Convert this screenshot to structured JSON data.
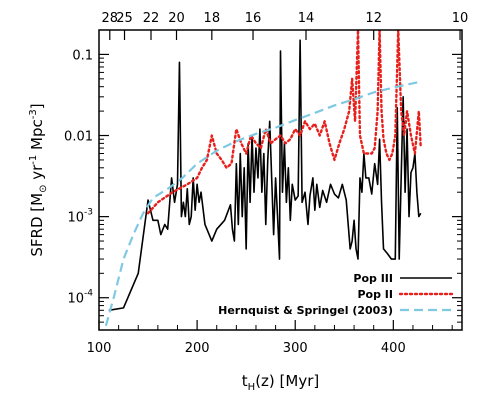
{
  "chart_data": {
    "type": "line",
    "x_label": {
      "main": "t",
      "sub": "H",
      "rest": "(z)  [Myr]"
    },
    "y_label": {
      "prefix": "SFRD  [M",
      "sun_sub": "⊙",
      "mid": " yr",
      "exp1": "-1",
      "mid2": " Mpc",
      "exp2": "-3",
      "suffix": "]"
    },
    "xlim": [
      100,
      470
    ],
    "ylim": [
      4e-05,
      0.2
    ],
    "y_scale": "log",
    "x_ticks": [
      100,
      200,
      300,
      400
    ],
    "x_tick_labels": [
      "100",
      "200",
      "300",
      "400"
    ],
    "y_ticks": [
      0.0001,
      0.001,
      0.01,
      0.1
    ],
    "y_tick_labels": [
      {
        "kind": "pow",
        "base": "10",
        "exp": "-4"
      },
      {
        "kind": "pow",
        "base": "10",
        "exp": "-3"
      },
      {
        "kind": "plain",
        "text": "0.01"
      },
      {
        "kind": "plain",
        "text": "0.1"
      }
    ],
    "top_ticks": [
      {
        "x": 111,
        "label": "28"
      },
      {
        "x": 126,
        "label": "25"
      },
      {
        "x": 153,
        "label": "22"
      },
      {
        "x": 179,
        "label": "20"
      },
      {
        "x": 215,
        "label": "18"
      },
      {
        "x": 257,
        "label": "16"
      },
      {
        "x": 311,
        "label": "14"
      },
      {
        "x": 380,
        "label": "12"
      },
      {
        "x": 468,
        "label": "10"
      }
    ],
    "legend_position": "bottom-right",
    "series": [
      {
        "name": "Pop III",
        "color": "#000000",
        "dash": "solid",
        "points": [
          [
            110,
            7e-05
          ],
          [
            125,
            7.5e-05
          ],
          [
            140,
            0.0002
          ],
          [
            150,
            0.0016
          ],
          [
            155,
            0.0009
          ],
          [
            160,
            0.0009
          ],
          [
            163,
            0.0006
          ],
          [
            167,
            0.0008
          ],
          [
            170,
            0.0007
          ],
          [
            174,
            0.003
          ],
          [
            177,
            0.0015
          ],
          [
            180,
            0.0025
          ],
          [
            182,
            0.08
          ],
          [
            184,
            0.001
          ],
          [
            186,
            0.0015
          ],
          [
            188,
            0.001
          ],
          [
            190,
            0.0022
          ],
          [
            192,
            0.0008
          ],
          [
            194,
            0.001
          ],
          [
            196,
            0.003
          ],
          [
            198,
            0.0012
          ],
          [
            200,
            0.0025
          ],
          [
            202,
            0.0015
          ],
          [
            204,
            0.002
          ],
          [
            208,
            0.0008
          ],
          [
            215,
            0.0005
          ],
          [
            220,
            0.0007
          ],
          [
            228,
            0.0009
          ],
          [
            234,
            0.0014
          ],
          [
            236,
            0.0007
          ],
          [
            238,
            0.0005
          ],
          [
            240,
            0.0045
          ],
          [
            242,
            0.0008
          ],
          [
            244,
            0.006
          ],
          [
            246,
            0.001
          ],
          [
            248,
            0.004
          ],
          [
            250,
            0.0004
          ],
          [
            252,
            0.008
          ],
          [
            254,
            0.0015
          ],
          [
            256,
            0.01
          ],
          [
            258,
            0.002
          ],
          [
            260,
            0.007
          ],
          [
            262,
            0.003
          ],
          [
            264,
            0.012
          ],
          [
            266,
            0.002
          ],
          [
            268,
            0.006
          ],
          [
            270,
            0.0008
          ],
          [
            272,
            0.005
          ],
          [
            274,
            0.015
          ],
          [
            276,
            0.003
          ],
          [
            278,
            0.0006
          ],
          [
            280,
            0.003
          ],
          [
            282,
            0.001
          ],
          [
            284,
            0.0003
          ],
          [
            285,
            0.11
          ],
          [
            287,
            0.002
          ],
          [
            289,
            0.008
          ],
          [
            291,
            0.0015
          ],
          [
            293,
            0.004
          ],
          [
            295,
            0.0009
          ],
          [
            297,
            0.0025
          ],
          [
            300,
            0.0016
          ],
          [
            303,
            0.0018
          ],
          [
            305,
            0.15
          ],
          [
            307,
            0.0015
          ],
          [
            310,
            0.002
          ],
          [
            313,
            0.0008
          ],
          [
            315,
            0.0018
          ],
          [
            318,
            0.003
          ],
          [
            320,
            0.0012
          ],
          [
            322,
            0.0025
          ],
          [
            325,
            0.0013
          ],
          [
            328,
            0.0021
          ],
          [
            332,
            0.0015
          ],
          [
            336,
            0.0025
          ],
          [
            340,
            0.0019
          ],
          [
            344,
            0.0017
          ],
          [
            348,
            0.0025
          ],
          [
            352,
            0.0016
          ],
          [
            356,
            0.0004
          ],
          [
            358,
            0.0005
          ],
          [
            360,
            0.0009
          ],
          [
            362,
            0.0004
          ],
          [
            364,
            0.0003
          ],
          [
            366,
            0.003
          ],
          [
            368,
            0.002
          ],
          [
            370,
            0.006
          ],
          [
            372,
            0.003
          ],
          [
            375,
            0.003
          ],
          [
            378,
            0.0019
          ],
          [
            381,
            0.0045
          ],
          [
            384,
            0.0025
          ],
          [
            386,
            0.009
          ],
          [
            388,
            0.0015
          ],
          [
            390,
            0.0004
          ],
          [
            394,
            0.00035
          ],
          [
            398,
            0.0003
          ],
          [
            402,
            0.0003
          ],
          [
            404,
            0.022
          ],
          [
            406,
            0.0003
          ],
          [
            408,
            0.003
          ],
          [
            410,
            0.03
          ],
          [
            412,
            0.002
          ],
          [
            414,
            0.012
          ],
          [
            416,
            0.001
          ],
          [
            418,
            0.0035
          ],
          [
            420,
            0.004
          ],
          [
            422,
            0.006
          ],
          [
            424,
            0.002
          ],
          [
            426,
            0.001
          ],
          [
            428,
            0.0011
          ]
        ]
      },
      {
        "name": "Pop II",
        "color": "#e8201c",
        "dash": "dotted",
        "points": [
          [
            150,
            0.0011
          ],
          [
            160,
            0.0015
          ],
          [
            175,
            0.002
          ],
          [
            190,
            0.0025
          ],
          [
            200,
            0.003
          ],
          [
            205,
            0.004
          ],
          [
            210,
            0.005
          ],
          [
            215,
            0.01
          ],
          [
            220,
            0.006
          ],
          [
            225,
            0.005
          ],
          [
            230,
            0.004
          ],
          [
            235,
            0.0045
          ],
          [
            240,
            0.012
          ],
          [
            245,
            0.008
          ],
          [
            250,
            0.006
          ],
          [
            255,
            0.01
          ],
          [
            260,
            0.008
          ],
          [
            265,
            0.007
          ],
          [
            270,
            0.012
          ],
          [
            275,
            0.008
          ],
          [
            280,
            0.009
          ],
          [
            285,
            0.01
          ],
          [
            290,
            0.008
          ],
          [
            295,
            0.009
          ],
          [
            300,
            0.012
          ],
          [
            305,
            0.01
          ],
          [
            310,
            0.015
          ],
          [
            315,
            0.012
          ],
          [
            320,
            0.014
          ],
          [
            325,
            0.01
          ],
          [
            330,
            0.015
          ],
          [
            335,
            0.008
          ],
          [
            340,
            0.005
          ],
          [
            345,
            0.008
          ],
          [
            350,
            0.012
          ],
          [
            355,
            0.02
          ],
          [
            358,
            0.05
          ],
          [
            361,
            0.015
          ],
          [
            364,
            0.2
          ],
          [
            366,
            0.01
          ],
          [
            370,
            0.006
          ],
          [
            374,
            0.006
          ],
          [
            378,
            0.006
          ],
          [
            381,
            0.007
          ],
          [
            384,
            0.02
          ],
          [
            386,
            0.2
          ],
          [
            388,
            0.02
          ],
          [
            390,
            0.009
          ],
          [
            393,
            0.006
          ],
          [
            396,
            0.005
          ],
          [
            399,
            0.006
          ],
          [
            402,
            0.01
          ],
          [
            405,
            0.2
          ],
          [
            408,
            0.02
          ],
          [
            411,
            0.01
          ],
          [
            414,
            0.02
          ],
          [
            418,
            0.01
          ],
          [
            422,
            0.006
          ],
          [
            426,
            0.02
          ],
          [
            428,
            0.007
          ]
        ]
      },
      {
        "name": "Hernquist & Springel (2003)",
        "color": "#7fc9e3",
        "dash": "dashed",
        "points": [
          [
            107,
            4.5e-05
          ],
          [
            115,
            0.0001
          ],
          [
            125,
            0.0003
          ],
          [
            135,
            0.0006
          ],
          [
            145,
            0.0011
          ],
          [
            155,
            0.0017
          ],
          [
            170,
            0.0022
          ],
          [
            185,
            0.003
          ],
          [
            200,
            0.0045
          ],
          [
            220,
            0.0065
          ],
          [
            240,
            0.0085
          ],
          [
            260,
            0.0105
          ],
          [
            280,
            0.0125
          ],
          [
            300,
            0.0155
          ],
          [
            320,
            0.019
          ],
          [
            340,
            0.0235
          ],
          [
            360,
            0.028
          ],
          [
            380,
            0.034
          ],
          [
            400,
            0.039
          ],
          [
            420,
            0.044
          ],
          [
            428,
            0.046
          ]
        ]
      }
    ]
  }
}
